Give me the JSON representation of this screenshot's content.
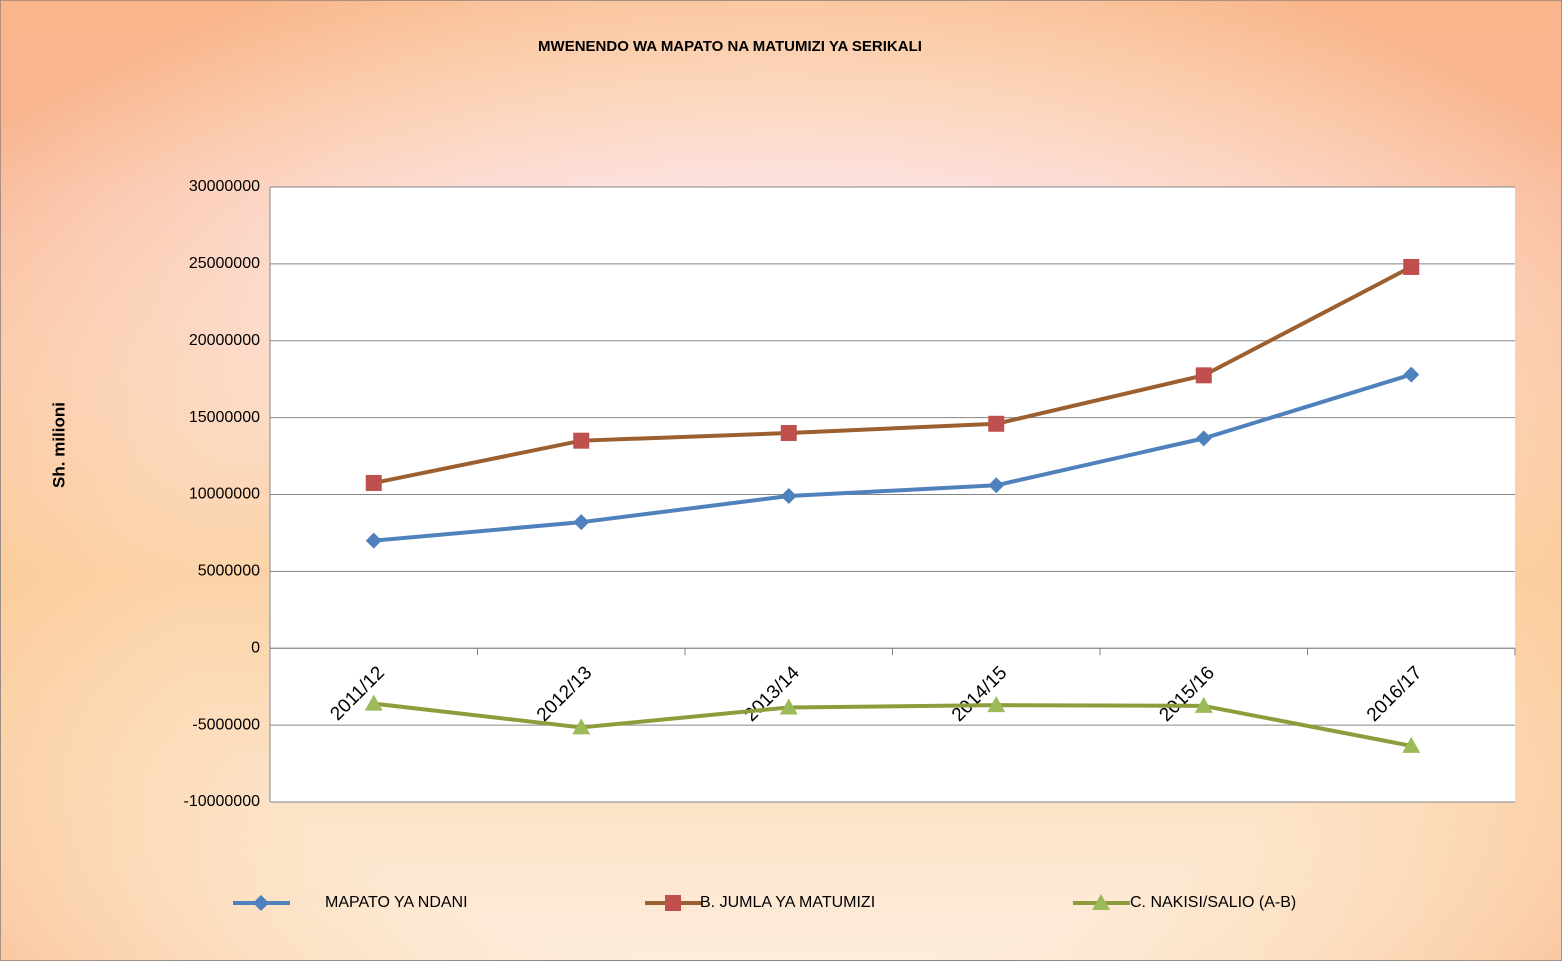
{
  "chart_data": {
    "type": "line",
    "title": "MWENENDO WA MAPATO NA MATUMIZI YA SERIKALI",
    "y_label": "Sh. milioni",
    "categories": [
      "2011/12",
      "2012/13",
      "2013/14",
      "2014/15",
      "2015/16",
      "2016/17"
    ],
    "series": [
      {
        "name": "MAPATO YA NDANI",
        "color": "#4f81bd",
        "marker_color": "#4f81bd",
        "marker": "diamond",
        "values": [
          7000000,
          8200000,
          9900000,
          10600000,
          13650000,
          17800000
        ]
      },
      {
        "name": "B.  JUMLA YA MATUMIZI",
        "color": "#9c6030",
        "marker_color": "#c0504d",
        "marker": "square",
        "values": [
          10750000,
          13500000,
          14000000,
          14600000,
          17750000,
          24800000
        ]
      },
      {
        "name": "C.  NAKISI/SALIO  (A-B)",
        "color": "#8f9c3b",
        "marker_color": "#9bbb59",
        "marker": "triangle",
        "values": [
          -3600000,
          -5150000,
          -3850000,
          -3700000,
          -3750000,
          -6350000
        ]
      }
    ],
    "ylim": [
      -10000000,
      30000000
    ],
    "yticks": [
      -10000000,
      -5000000,
      0,
      5000000,
      10000000,
      15000000,
      20000000,
      25000000,
      30000000
    ],
    "grid": true,
    "legend": "bottom"
  }
}
